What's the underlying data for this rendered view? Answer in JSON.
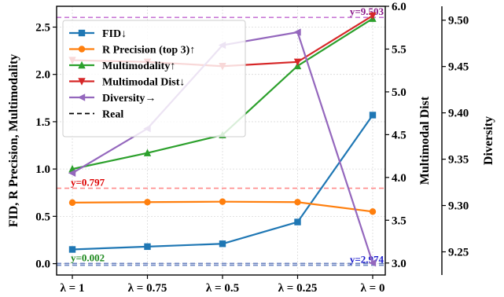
{
  "chart_data": {
    "type": "line",
    "categories": [
      "λ = 1",
      "λ = 0.75",
      "λ = 0.5",
      "λ = 0.25",
      "λ = 0"
    ],
    "left_axis": {
      "label": "FID, R Precision, Multimodality",
      "range": [
        -0.12,
        2.72
      ],
      "ticks": [
        0.0,
        0.5,
        1.0,
        1.5,
        2.0,
        2.5
      ],
      "tick_labels": [
        "0.0",
        "0.5",
        "1.0",
        "1.5",
        "2.0",
        "2.5"
      ]
    },
    "mid_axis": {
      "label": "Multimodal Dist",
      "range": [
        2.86,
        6.0
      ],
      "ticks": [
        3.0,
        3.5,
        4.0,
        4.5,
        5.0,
        5.5,
        6.0
      ],
      "tick_labels": [
        "3.0",
        "3.5",
        "4.0",
        "4.5",
        "5.0",
        "5.5",
        "6.0"
      ]
    },
    "right_axis": {
      "label": "Diversity",
      "range": [
        9.225,
        9.515
      ],
      "ticks": [
        9.25,
        9.3,
        9.35,
        9.4,
        9.45,
        9.5
      ],
      "tick_labels": [
        "9.25",
        "9.30",
        "9.35",
        "9.40",
        "9.45",
        "9.50"
      ]
    },
    "series": [
      {
        "name": "FID↓",
        "axis": "left",
        "color": "#1f77b4",
        "marker": "square",
        "values": [
          0.15,
          0.18,
          0.21,
          0.44,
          1.57
        ]
      },
      {
        "name": "R Precision (top 3)↑",
        "axis": "left",
        "color": "#ff7f0e",
        "marker": "circle",
        "values": [
          0.645,
          0.65,
          0.655,
          0.65,
          0.55
        ]
      },
      {
        "name": "Multimodality↑",
        "axis": "left",
        "color": "#2ca02c",
        "marker": "triangle-up",
        "values": [
          1.0,
          1.17,
          1.36,
          2.09,
          2.59
        ]
      },
      {
        "name": "Multimodal Dist↓",
        "axis": "mid",
        "color": "#d62728",
        "marker": "triangle-down",
        "values": [
          5.37,
          5.35,
          5.3,
          5.35,
          5.89
        ]
      },
      {
        "name": "Diversity→",
        "axis": "right",
        "color": "#9467bd",
        "marker": "triangle-left",
        "values": [
          9.335,
          9.383,
          9.473,
          9.487,
          9.238
        ]
      }
    ],
    "reference_lines": [
      {
        "name": "Real",
        "style": "dashed",
        "color": "#000000",
        "legend": true
      },
      {
        "axis": "left",
        "value": 0.797,
        "color": "#ff8a8a",
        "label": "y=0.797",
        "label_color": "#dd0000",
        "label_side": "left"
      },
      {
        "axis": "left",
        "value": 0.002,
        "color": "#6f86c2",
        "label": "y=0.002",
        "label_color": "#1e8a1e",
        "label_side": "left"
      },
      {
        "axis": "mid",
        "value": 2.974,
        "color": "#6f86c2",
        "label": "y=2.974",
        "label_color": "#1a1acc",
        "label_side": "right"
      },
      {
        "axis": "right",
        "value": 9.503,
        "color": "#c97ad6",
        "label": "y=9.503",
        "label_color": "#8b1a8b",
        "label_side": "right"
      }
    ],
    "grid": true,
    "legend_position": "upper-left"
  }
}
